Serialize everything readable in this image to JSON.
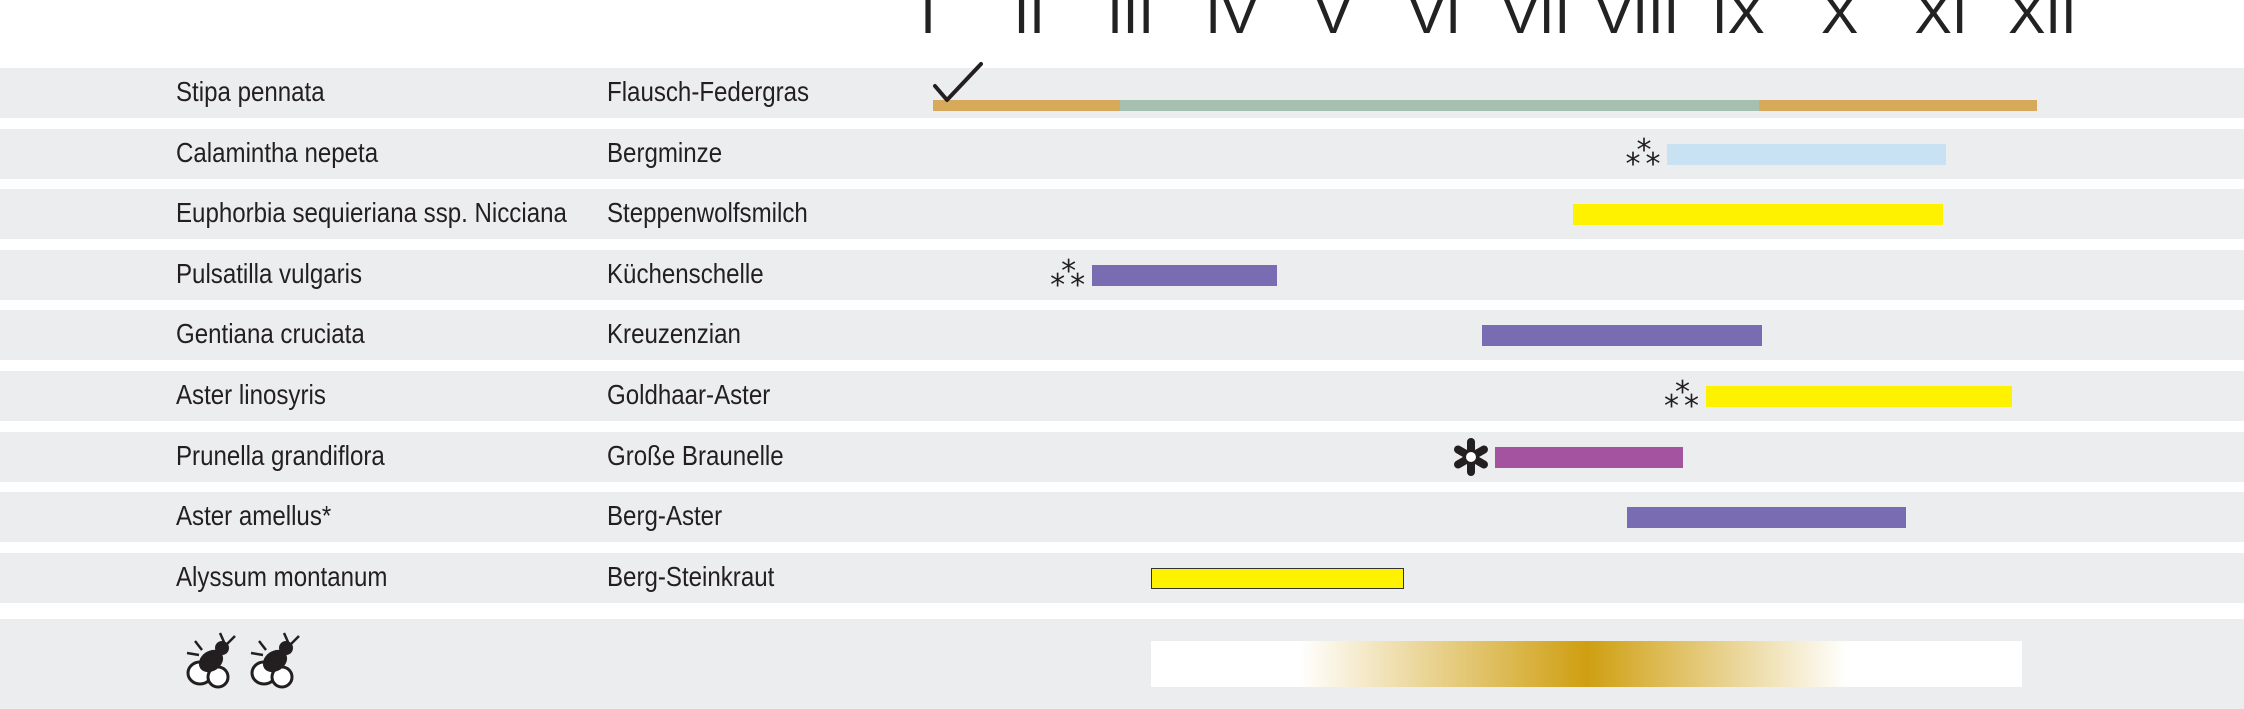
{
  "chart_data": {
    "type": "gantt",
    "months": [
      "I",
      "II",
      "III",
      "IV",
      "V",
      "VI",
      "VII",
      "VIII",
      "IX",
      "X",
      "XI",
      "XII"
    ],
    "rows": [
      {
        "latin": "Stipa pennata",
        "german": "Flausch-Federgras",
        "marker": "checkmark",
        "segments": [
          {
            "start": 1.05,
            "end": 2.9,
            "color": "#d6a95b"
          },
          {
            "start": 2.9,
            "end": 9.2,
            "color": "#a5bfb0"
          },
          {
            "start": 9.2,
            "end": 11.95,
            "color": "#d6a95b"
          }
        ]
      },
      {
        "latin": "Calamintha nepeta",
        "german": "Bergminze",
        "marker": "triple-asterisk",
        "segments": [
          {
            "start": 8.3,
            "end": 11.05,
            "color": "#c8e2f3"
          }
        ]
      },
      {
        "latin": "Euphorbia sequieriana ssp. Nicciana",
        "german": "Steppenwolfsmilch",
        "marker": "",
        "segments": [
          {
            "start": 7.37,
            "end": 11.02,
            "color": "#fff200"
          }
        ]
      },
      {
        "latin": "Pulsatilla vulgaris",
        "german": "Küchenschelle",
        "marker": "triple-asterisk",
        "segments": [
          {
            "start": 2.62,
            "end": 4.45,
            "color": "#7a6cb3"
          }
        ]
      },
      {
        "latin": "Gentiana cruciata",
        "german": "Kreuzenzian",
        "marker": "",
        "segments": [
          {
            "start": 6.47,
            "end": 9.23,
            "color": "#7a6cb3"
          }
        ]
      },
      {
        "latin": "Aster linosyris",
        "german": "Goldhaar-Aster",
        "marker": "triple-asterisk",
        "segments": [
          {
            "start": 8.68,
            "end": 11.7,
            "color": "#fff200"
          }
        ]
      },
      {
        "latin": "Prunella grandiflora",
        "german": "Große Braunelle",
        "marker": "asterisk-bold",
        "segments": [
          {
            "start": 6.6,
            "end": 8.45,
            "color": "#a453a0"
          }
        ]
      },
      {
        "latin": "Aster amellus*",
        "german": "Berg-Aster",
        "marker": "",
        "segments": [
          {
            "start": 7.9,
            "end": 10.65,
            "color": "#7a6cb3"
          }
        ]
      },
      {
        "latin": "Alyssum montanum",
        "german": "Berg-Steinkraut",
        "marker": "",
        "segments": [
          {
            "start": 3.2,
            "end": 5.7,
            "color": "#fff200",
            "outlined": true
          }
        ]
      }
    ],
    "pollen": {
      "icon": "bee-icon",
      "start": 3.2,
      "end": 11.8,
      "peak": 7.5,
      "color": "#cf9f11"
    }
  }
}
